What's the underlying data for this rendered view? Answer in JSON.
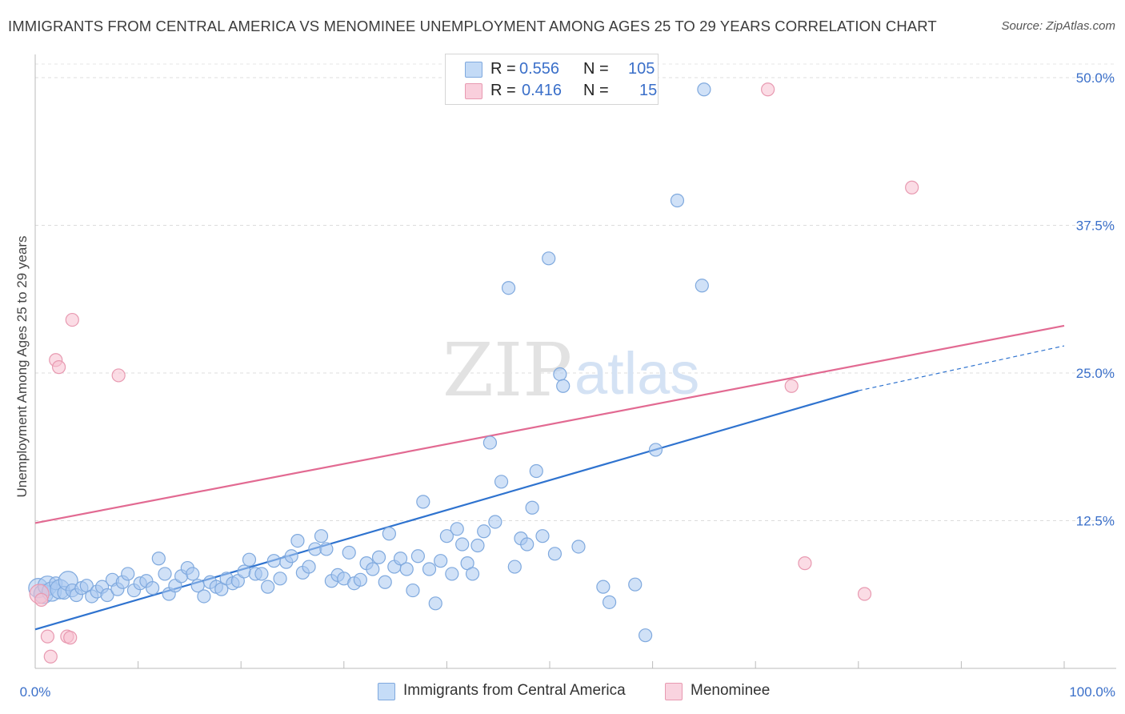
{
  "title": "IMMIGRANTS FROM CENTRAL AMERICA VS MENOMINEE UNEMPLOYMENT AMONG AGES 25 TO 29 YEARS CORRELATION CHART",
  "source": "Source: ZipAtlas.com",
  "watermark": {
    "zip": "ZIP",
    "atlas": "atlas"
  },
  "legend": {
    "r_label": "R =",
    "n_label": "N =",
    "rows": [
      {
        "r": "0.556",
        "n": "105",
        "color": "#a9c8f0",
        "border": "#7fa9de"
      },
      {
        "r": "0.416",
        "n": "15",
        "color": "#f7c0d0",
        "border": "#e89ab1"
      }
    ]
  },
  "bottom_legend": {
    "items": [
      {
        "label": "Immigrants from Central America",
        "color": "#c5dcf7",
        "border": "#7fa9de"
      },
      {
        "label": "Menominee",
        "color": "#f9d3df",
        "border": "#e89ab1"
      }
    ]
  },
  "chart_data": {
    "type": "scatter",
    "xlabel": "",
    "ylabel": "Unemployment Among Ages 25 to 29 years",
    "xlim": [
      0,
      100
    ],
    "ylim": [
      0,
      50
    ],
    "x_tick_labels": [
      "0.0%",
      "100.0%"
    ],
    "y_tick_labels": [
      "12.5%",
      "25.0%",
      "37.5%",
      "50.0%"
    ],
    "y_ticks": [
      12.5,
      25,
      37.5,
      50
    ],
    "grid": true,
    "series": [
      {
        "name": "Immigrants from Central America",
        "color": "#7fa9de",
        "fill": "#a9c8f0",
        "trendline": {
          "x": [
            0,
            80
          ],
          "y": [
            3.3,
            23.5
          ],
          "dashed_extension_to": [
            100,
            27.3
          ],
          "color": "#2f73cf"
        },
        "points": [
          {
            "x": 0.3,
            "y": 6.8,
            "big": true
          },
          {
            "x": 0.8,
            "y": 6.3,
            "big": true
          },
          {
            "x": 1.2,
            "y": 7.0,
            "big": true
          },
          {
            "x": 1.6,
            "y": 6.5,
            "big": true
          },
          {
            "x": 2.0,
            "y": 7.2
          },
          {
            "x": 2.4,
            "y": 6.7,
            "big": true
          },
          {
            "x": 2.8,
            "y": 6.4
          },
          {
            "x": 3.2,
            "y": 7.4,
            "big": true
          },
          {
            "x": 3.6,
            "y": 6.6
          },
          {
            "x": 4.0,
            "y": 6.2
          },
          {
            "x": 4.5,
            "y": 6.8
          },
          {
            "x": 5.0,
            "y": 7.0
          },
          {
            "x": 5.5,
            "y": 6.1
          },
          {
            "x": 6.0,
            "y": 6.5
          },
          {
            "x": 6.5,
            "y": 6.9
          },
          {
            "x": 7.0,
            "y": 6.2
          },
          {
            "x": 7.5,
            "y": 7.5
          },
          {
            "x": 8.0,
            "y": 6.7
          },
          {
            "x": 8.5,
            "y": 7.3
          },
          {
            "x": 9.0,
            "y": 8.0
          },
          {
            "x": 9.6,
            "y": 6.6
          },
          {
            "x": 10.2,
            "y": 7.2
          },
          {
            "x": 10.8,
            "y": 7.4
          },
          {
            "x": 11.4,
            "y": 6.8
          },
          {
            "x": 12.0,
            "y": 9.3
          },
          {
            "x": 12.6,
            "y": 8.0
          },
          {
            "x": 13.0,
            "y": 6.3
          },
          {
            "x": 13.6,
            "y": 7.0
          },
          {
            "x": 14.2,
            "y": 7.8
          },
          {
            "x": 14.8,
            "y": 8.5
          },
          {
            "x": 15.3,
            "y": 8.0
          },
          {
            "x": 15.8,
            "y": 7.0
          },
          {
            "x": 16.4,
            "y": 6.1
          },
          {
            "x": 17.0,
            "y": 7.3
          },
          {
            "x": 17.6,
            "y": 6.9
          },
          {
            "x": 18.1,
            "y": 6.7
          },
          {
            "x": 18.6,
            "y": 7.6
          },
          {
            "x": 19.2,
            "y": 7.2
          },
          {
            "x": 19.7,
            "y": 7.4
          },
          {
            "x": 20.3,
            "y": 8.2
          },
          {
            "x": 20.8,
            "y": 9.2
          },
          {
            "x": 21.4,
            "y": 8.0
          },
          {
            "x": 22.0,
            "y": 8.0
          },
          {
            "x": 22.6,
            "y": 6.9
          },
          {
            "x": 23.2,
            "y": 9.1
          },
          {
            "x": 23.8,
            "y": 7.6
          },
          {
            "x": 24.4,
            "y": 9.0
          },
          {
            "x": 24.9,
            "y": 9.5
          },
          {
            "x": 25.5,
            "y": 10.8
          },
          {
            "x": 26.0,
            "y": 8.1
          },
          {
            "x": 26.6,
            "y": 8.6
          },
          {
            "x": 27.2,
            "y": 10.1
          },
          {
            "x": 27.8,
            "y": 11.2
          },
          {
            "x": 28.3,
            "y": 10.1
          },
          {
            "x": 28.8,
            "y": 7.4
          },
          {
            "x": 29.4,
            "y": 7.9
          },
          {
            "x": 30.0,
            "y": 7.6
          },
          {
            "x": 30.5,
            "y": 9.8
          },
          {
            "x": 31.0,
            "y": 7.2
          },
          {
            "x": 31.6,
            "y": 7.5
          },
          {
            "x": 32.2,
            "y": 8.9
          },
          {
            "x": 32.8,
            "y": 8.4
          },
          {
            "x": 33.4,
            "y": 9.4
          },
          {
            "x": 34.0,
            "y": 7.3
          },
          {
            "x": 34.4,
            "y": 11.4
          },
          {
            "x": 34.9,
            "y": 8.6
          },
          {
            "x": 35.5,
            "y": 9.3
          },
          {
            "x": 36.1,
            "y": 8.4
          },
          {
            "x": 36.7,
            "y": 6.6
          },
          {
            "x": 37.2,
            "y": 9.5
          },
          {
            "x": 37.7,
            "y": 14.1
          },
          {
            "x": 38.3,
            "y": 8.4
          },
          {
            "x": 38.9,
            "y": 5.5
          },
          {
            "x": 39.4,
            "y": 9.1
          },
          {
            "x": 40.0,
            "y": 11.2
          },
          {
            "x": 40.5,
            "y": 8.0
          },
          {
            "x": 41.0,
            "y": 11.8
          },
          {
            "x": 41.5,
            "y": 10.5
          },
          {
            "x": 42.0,
            "y": 8.9
          },
          {
            "x": 42.5,
            "y": 8.0
          },
          {
            "x": 43.0,
            "y": 10.4
          },
          {
            "x": 43.6,
            "y": 11.6
          },
          {
            "x": 44.2,
            "y": 19.1
          },
          {
            "x": 44.7,
            "y": 12.4
          },
          {
            "x": 45.3,
            "y": 15.8
          },
          {
            "x": 46.0,
            "y": 32.2
          },
          {
            "x": 46.6,
            "y": 8.6
          },
          {
            "x": 47.2,
            "y": 11.0
          },
          {
            "x": 47.8,
            "y": 10.5
          },
          {
            "x": 48.3,
            "y": 13.6
          },
          {
            "x": 48.7,
            "y": 16.7
          },
          {
            "x": 49.3,
            "y": 11.2
          },
          {
            "x": 49.9,
            "y": 34.7
          },
          {
            "x": 50.5,
            "y": 9.7
          },
          {
            "x": 51.0,
            "y": 24.9
          },
          {
            "x": 51.3,
            "y": 23.9
          },
          {
            "x": 52.8,
            "y": 10.3
          },
          {
            "x": 55.2,
            "y": 6.9
          },
          {
            "x": 55.8,
            "y": 5.6
          },
          {
            "x": 58.3,
            "y": 7.1
          },
          {
            "x": 59.3,
            "y": 2.8
          },
          {
            "x": 60.3,
            "y": 18.5
          },
          {
            "x": 62.4,
            "y": 39.6
          },
          {
            "x": 64.8,
            "y": 32.4
          },
          {
            "x": 65.0,
            "y": 49.0
          }
        ]
      },
      {
        "name": "Menominee",
        "color": "#e89ab1",
        "fill": "#f7c0d0",
        "trendline": {
          "x": [
            0,
            100
          ],
          "y": [
            12.3,
            29.0
          ],
          "color": "#e26a92"
        },
        "points": [
          {
            "x": 0.4,
            "y": 6.3,
            "big": true
          },
          {
            "x": 0.6,
            "y": 5.8
          },
          {
            "x": 1.2,
            "y": 2.7
          },
          {
            "x": 1.5,
            "y": 1.0
          },
          {
            "x": 2.0,
            "y": 26.1
          },
          {
            "x": 2.3,
            "y": 25.5
          },
          {
            "x": 3.1,
            "y": 2.7
          },
          {
            "x": 3.4,
            "y": 2.6
          },
          {
            "x": 3.6,
            "y": 29.5
          },
          {
            "x": 8.1,
            "y": 24.8
          },
          {
            "x": 71.2,
            "y": 49.0
          },
          {
            "x": 73.5,
            "y": 23.9
          },
          {
            "x": 74.8,
            "y": 8.9
          },
          {
            "x": 80.6,
            "y": 6.3
          },
          {
            "x": 85.2,
            "y": 40.7
          }
        ]
      }
    ]
  }
}
